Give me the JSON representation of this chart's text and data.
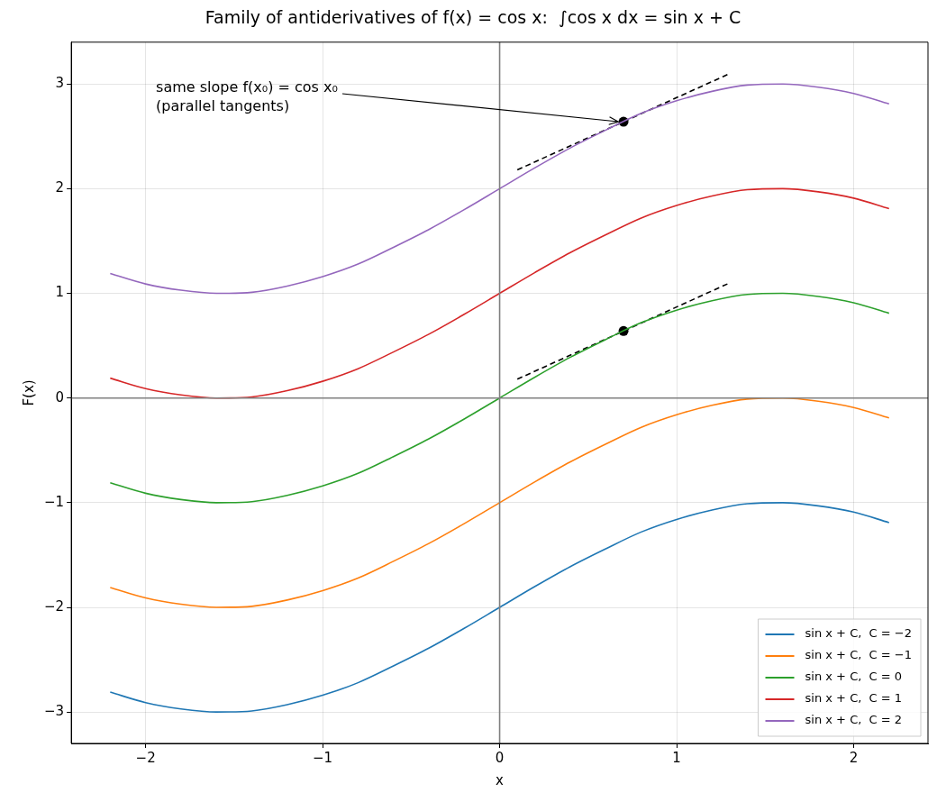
{
  "chart_data": {
    "type": "line",
    "title": "Family of antiderivatives of f(x) = cos x:  ∫cos x dx = sin x + C",
    "xlabel": "x",
    "ylabel": "F(x)",
    "x": [
      -2.2,
      -2.0,
      -1.8,
      -1.6,
      -1.4,
      -1.2,
      -1.0,
      -0.8,
      -0.6,
      -0.4,
      -0.2,
      0,
      0.2,
      0.4,
      0.6,
      0.8,
      1.0,
      1.2,
      1.4,
      1.6,
      1.8,
      2.0,
      2.2
    ],
    "series": [
      {
        "type": "line",
        "color": "#808080",
        "x": [
          0,
          0
        ],
        "values": [
          -3.3,
          3.4
        ]
      },
      {
        "type": "line",
        "color": "#808080",
        "x": [
          -2.42,
          2.42
        ],
        "values": [
          0,
          0
        ]
      },
      {
        "name": "sin x + C,  C = −2",
        "color": "#1f77b4",
        "values": [
          -2.81,
          -2.91,
          -2.97,
          -3.0,
          -2.99,
          -2.93,
          -2.84,
          -2.72,
          -2.56,
          -2.39,
          -2.2,
          -2,
          -1.8,
          -1.61,
          -1.44,
          -1.28,
          -1.16,
          -1.07,
          -1.01,
          -1.0,
          -1.03,
          -1.09,
          -1.19
        ]
      },
      {
        "name": "sin x + C,  C = −1",
        "color": "#ff7f0e",
        "values": [
          -1.81,
          -1.91,
          -1.97,
          -2.0,
          -1.99,
          -1.93,
          -1.84,
          -1.72,
          -1.56,
          -1.39,
          -1.2,
          -1,
          -0.8,
          -0.61,
          -0.44,
          -0.28,
          -0.16,
          -0.07,
          -0.01,
          0.0,
          -0.03,
          -0.09,
          -0.19
        ]
      },
      {
        "name": "sin x + C,  C = 0",
        "color": "#2ca02c",
        "values": [
          -0.81,
          -0.91,
          -0.97,
          -1.0,
          -0.99,
          -0.93,
          -0.84,
          -0.72,
          -0.56,
          -0.39,
          -0.2,
          0,
          0.2,
          0.39,
          0.56,
          0.72,
          0.84,
          0.93,
          0.99,
          1.0,
          0.97,
          0.91,
          0.81
        ]
      },
      {
        "name": "sin x + C,  C = 1",
        "color": "#d62728",
        "values": [
          0.19,
          0.09,
          0.03,
          0.0,
          0.01,
          0.07,
          0.16,
          0.28,
          0.44,
          0.61,
          0.8,
          1,
          1.2,
          1.39,
          1.56,
          1.72,
          1.84,
          1.93,
          1.99,
          2.0,
          1.97,
          1.91,
          1.81
        ]
      },
      {
        "name": "sin x + C,  C = 2",
        "color": "#9467bd",
        "values": [
          1.19,
          1.09,
          1.03,
          1.0,
          1.01,
          1.07,
          1.16,
          1.28,
          1.44,
          1.61,
          1.8,
          2,
          2.2,
          2.39,
          2.56,
          2.72,
          2.84,
          2.93,
          2.99,
          3.0,
          2.97,
          2.91,
          2.81
        ]
      },
      {
        "type": "line",
        "line_style": "dashed",
        "color": "#000000",
        "x": [
          0.1,
          1.3
        ],
        "values": [
          0.18,
          1.1
        ]
      },
      {
        "type": "line",
        "line_style": "dashed",
        "color": "#000000",
        "x": [
          0.1,
          1.3
        ],
        "values": [
          2.18,
          3.1
        ]
      },
      {
        "type": "scatter",
        "marker": "circle",
        "color": "#000000",
        "x": [
          0.7,
          0.7
        ],
        "values": [
          0.64,
          2.64
        ]
      }
    ],
    "annotations": [
      {
        "text": "same slope f(x₀) = cos x₀\n(parallel tangents)",
        "x": 0.7,
        "y": 2.64
      }
    ],
    "xlim": [
      -2.42,
      2.42
    ],
    "ylim": [
      -3.3,
      3.4
    ],
    "xticks": [
      -2,
      -1,
      0,
      1,
      2
    ],
    "yticks": [
      -3,
      -2,
      -1,
      0,
      1,
      2,
      3
    ],
    "grid": true,
    "legend": "bottom right"
  }
}
